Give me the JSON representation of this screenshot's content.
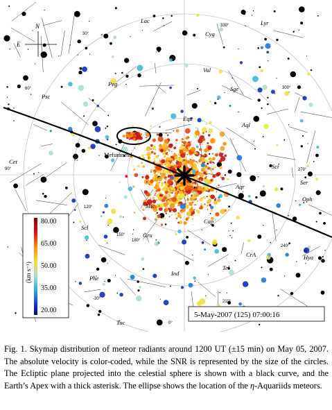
{
  "figure": {
    "compass": {
      "north": "N",
      "east": "E"
    },
    "constellations": [
      "Lac",
      "Cyg",
      "Lyr",
      "Peg",
      "Vul",
      "Sge",
      "Equ",
      "Aql",
      "Psc",
      "Cet",
      "Ser",
      "Sct",
      "Scl",
      "CrA",
      "Phe",
      "Ind",
      "Tel",
      "Gru",
      "Tuc",
      "Oph",
      "Hya",
      "Aqr",
      "Mic",
      "Cap"
    ],
    "cluster_label": "Mefuranesd",
    "labels_degrees": [
      "90°",
      "30°",
      "60°",
      "120°",
      "150°",
      "180°",
      "270°",
      "300°",
      "330°",
      "240°",
      "210°",
      "0°",
      "-30°"
    ],
    "colorbar": {
      "title": "(km s⁻¹)",
      "ticks": [
        "80.00",
        "65.00",
        "50.00",
        "35.00",
        "20.00"
      ]
    },
    "timestamp": "5-May-2007 (125) 07:00:16"
  },
  "caption": {
    "fig_label": "Fig. 1.",
    "text": "Skymap distribution of meteor radiants around 1200 UT (±15 min) on May 05, 2007. The absolute velocity is color-coded, while the SNR is represented by the size of the circles. The Ecliptic plane projected into the celestial sphere is shown with a black curve, and the Earth’s Apex with a thick asterisk. The ellipse shows the location of the",
    "math": "η",
    "text_end": "-Aquariids meteors."
  }
}
